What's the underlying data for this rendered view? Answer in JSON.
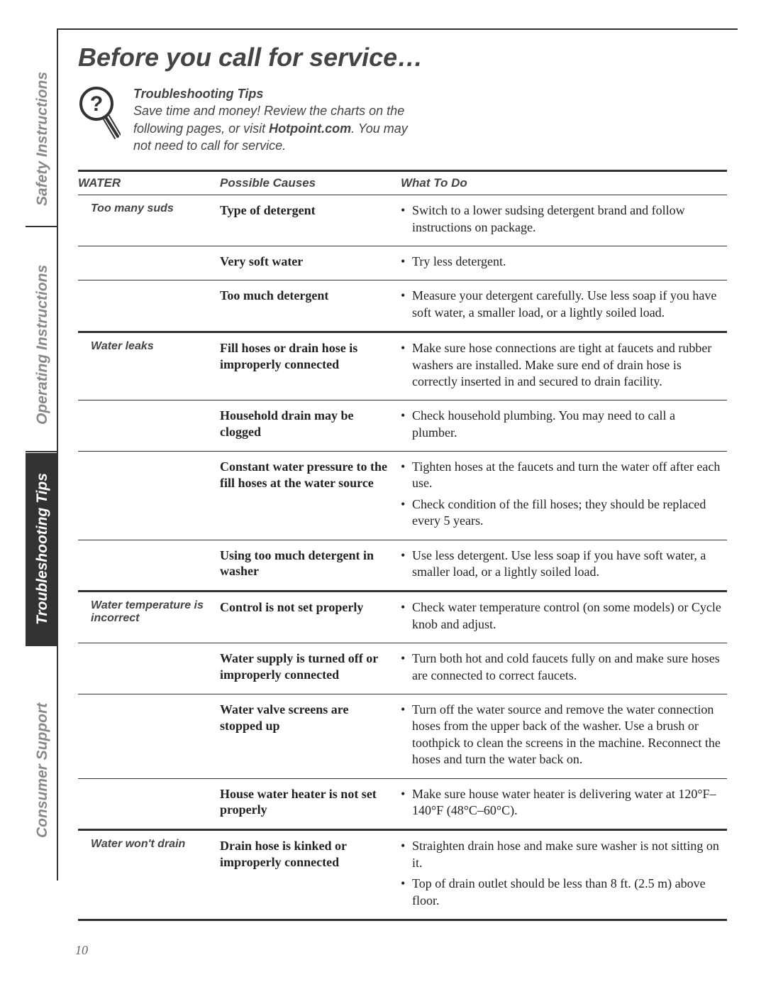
{
  "page_title": "Before you call for service…",
  "intro": {
    "subtitle": "Troubleshooting Tips",
    "line_before_brand": "Save time and money! Review the charts on the following pages, or visit ",
    "brand": "Hotpoint.com",
    "line_after_brand": ". You may not need to call for service."
  },
  "side_tabs": {
    "safety": "Safety Instructions",
    "operating": "Operating Instructions",
    "trouble": "Troubleshooting Tips",
    "consumer": "Consumer Support"
  },
  "headers": {
    "category": "WATER",
    "col2": "Possible Causes",
    "col3": "What To Do"
  },
  "sections": [
    {
      "problem": "Too many suds",
      "rows": [
        {
          "cause": "Type of detergent",
          "todos": [
            "Switch to a lower sudsing detergent brand and follow instructions on package."
          ]
        },
        {
          "cause": "Very soft water",
          "todos": [
            "Try less detergent."
          ]
        },
        {
          "cause": "Too much detergent",
          "todos": [
            "Measure your detergent carefully. Use less soap if you have soft water, a smaller load, or a lightly soiled load."
          ]
        }
      ]
    },
    {
      "problem": "Water leaks",
      "rows": [
        {
          "cause": "Fill hoses or drain hose is improperly connected",
          "todos": [
            "Make sure hose connections are tight at faucets and rubber washers are installed. Make sure end of drain hose is correctly inserted in and secured to drain facility."
          ]
        },
        {
          "cause": "Household drain may be clogged",
          "todos": [
            "Check household plumbing. You may need to call a plumber."
          ]
        },
        {
          "cause": "Constant water pressure to the fill hoses at the water source",
          "todos": [
            "Tighten hoses at the faucets and turn the water off after each use.",
            "Check condition of the fill hoses; they should be replaced every 5 years."
          ]
        },
        {
          "cause": "Using too much detergent in washer",
          "todos": [
            "Use less detergent. Use less soap if you have soft water, a smaller load, or a lightly soiled load."
          ]
        }
      ]
    },
    {
      "problem": "Water temperature is incorrect",
      "rows": [
        {
          "cause": "Control is not set properly",
          "todos": [
            "Check water temperature control (on some models) or Cycle knob and adjust."
          ]
        },
        {
          "cause": "Water supply is turned off or improperly connected",
          "todos": [
            "Turn both hot and cold faucets fully on and make sure hoses are connected to correct faucets."
          ]
        },
        {
          "cause": "Water valve screens are stopped up",
          "todos": [
            "Turn off the water source and remove the water connection hoses from the upper back of the washer. Use a brush or toothpick to clean the screens in the machine. Reconnect the hoses and turn the water back on."
          ]
        },
        {
          "cause": "House water heater is not set properly",
          "todos": [
            "Make sure house water heater is delivering water at 120°F–140°F (48°C–60°C)."
          ]
        }
      ]
    },
    {
      "problem": "Water won't drain",
      "rows": [
        {
          "cause": "Drain hose is kinked or improperly connected",
          "todos": [
            "Straighten drain hose and make sure washer is not sitting on it.",
            "Top of drain outlet should be less than 8 ft. (2.5 m) above floor."
          ]
        }
      ]
    }
  ],
  "page_number": "10",
  "colors": {
    "text_gray": "#888888",
    "text_dark": "#333333",
    "tab_bg": "#333333"
  }
}
